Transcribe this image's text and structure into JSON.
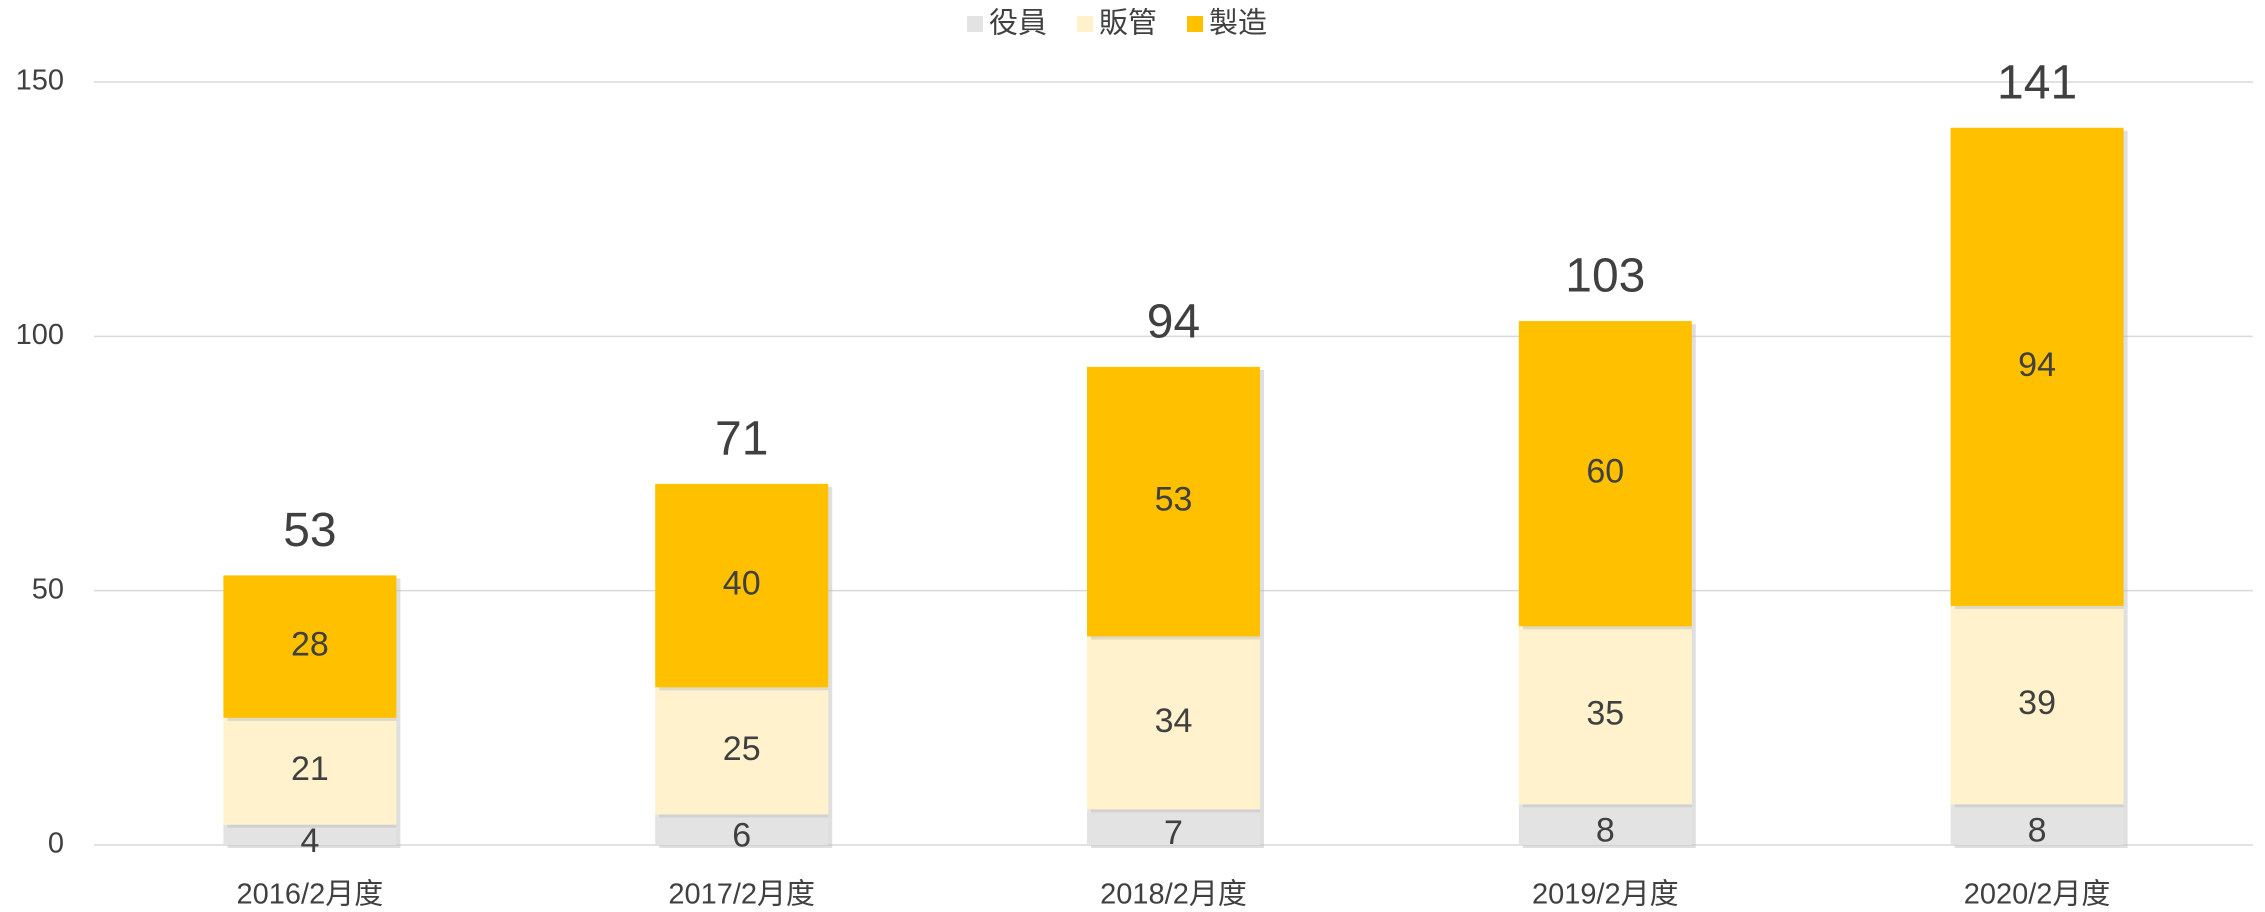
{
  "chart_data": {
    "type": "stacked_bar",
    "categories": [
      "2016/2月度",
      "2017/2月度",
      "2018/2月度",
      "2019/2月度",
      "2020/2月度"
    ],
    "series": [
      {
        "name": "役員",
        "color": "#e3e3e3",
        "values": [
          4,
          6,
          7,
          8,
          8
        ]
      },
      {
        "name": "販管",
        "color": "#fff2cc",
        "values": [
          21,
          25,
          34,
          35,
          39
        ]
      },
      {
        "name": "製造",
        "color": "#ffc000",
        "values": [
          28,
          40,
          53,
          60,
          94
        ]
      }
    ],
    "totals": [
      53,
      71,
      94,
      103,
      141
    ],
    "ylim": [
      0,
      150
    ],
    "yticks": [
      0,
      50,
      100,
      150
    ],
    "grid": true,
    "legend": "top"
  }
}
